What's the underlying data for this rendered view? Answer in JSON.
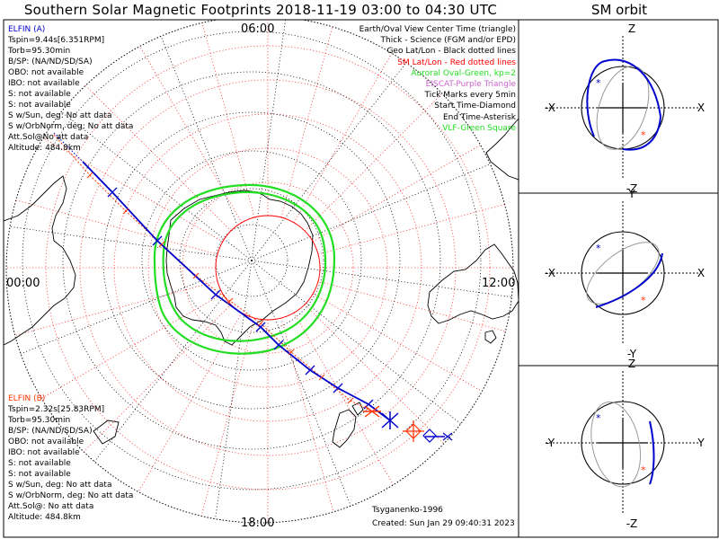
{
  "title": "Southern Solar Magnetic Footprints 2018-11-19 03:00 to 04:30 UTC",
  "orbit_title": "SM orbit",
  "elfin_a": {
    "name": "ELFIN (A)",
    "lines": [
      "Tspin=9.44s[6.351RPM]",
      "Torb=95.30min",
      "B/SP: (NA/ND/SD/SA)",
      "OBO: not available",
      "IBO: not available",
      "S: not available",
      "S: not available",
      "S w/Sun, deg: No att data",
      "S w/OrbNorm, deg: No att data",
      "Att.Sol@No att data",
      "Altitude: 484.8km"
    ],
    "color": "#0000cc"
  },
  "elfin_b": {
    "name": "ELFIN (B)",
    "lines": [
      "Tspin=2.32s[25.83RPM]",
      "Torb=95.30min",
      "B/SP: (NA/ND/SD/SA)",
      "OBO: not available",
      "IBO: not available",
      "S: not available",
      "S: not available",
      "S w/Sun, deg: No att data",
      "S w/OrbNorm, deg: No att data",
      "Att.Sol@: No att data",
      "Altitude: 484.8km"
    ],
    "color": "#ff3300"
  },
  "legend": [
    {
      "text": "Earth/Oval View Center Time (triangle)",
      "color": "#000000"
    },
    {
      "text": "Thick - Science (FGM and/or EPD)",
      "color": "#000000"
    },
    {
      "text": "Geo Lat/Lon - Black dotted lines",
      "color": "#000000"
    },
    {
      "text": "SM Lat/Lon - Red dotted lines",
      "color": "#ff0000"
    },
    {
      "text": "Auroral Oval-Green, kp=2",
      "color": "#22dd22"
    },
    {
      "text": "EISCAT-Purple Triangle",
      "color": "#cc66cc"
    },
    {
      "text": "Tick Marks every 5min",
      "color": "#000000"
    },
    {
      "text": "Start Time-Diamond",
      "color": "#000000"
    },
    {
      "text": "End Time-Asterisk",
      "color": "#000000"
    },
    {
      "text": "VLF-Green Square",
      "color": "#22dd22"
    }
  ],
  "time_labels": {
    "top": "06:00",
    "left": "00:00",
    "right": "12:00",
    "bottom": "18:00"
  },
  "credit": {
    "author": "Tsyganenko-1996",
    "created": "Created: Sun Jan 29 09:40:31 2023"
  },
  "orbit_panels": [
    {
      "top": "Z",
      "bottom": "-Z",
      "left": "-X",
      "right": "X"
    },
    {
      "top": "Y",
      "bottom": "-Y",
      "left": "-X",
      "right": "X"
    },
    {
      "top": "Z",
      "bottom": "-Z",
      "left": "-Y",
      "right": "Y"
    }
  ],
  "chart_data": {
    "type": "polar-map",
    "projection": "south-pole magnetic local time dial",
    "mlt_labels": [
      "06:00",
      "12:00",
      "18:00",
      "00:00"
    ],
    "sm_grid": "red dotted latitude circles and MLT meridians",
    "geo_grid": "black dotted latitude/longitude lines",
    "auroral_oval": {
      "kp": 2,
      "color": "#22dd22"
    },
    "series": [
      {
        "name": "ELFIN (A)",
        "color": "#0000cc",
        "tick_interval_min": 5
      },
      {
        "name": "ELFIN (B)",
        "color": "#ff3300",
        "tick_interval_min": 5
      }
    ]
  }
}
